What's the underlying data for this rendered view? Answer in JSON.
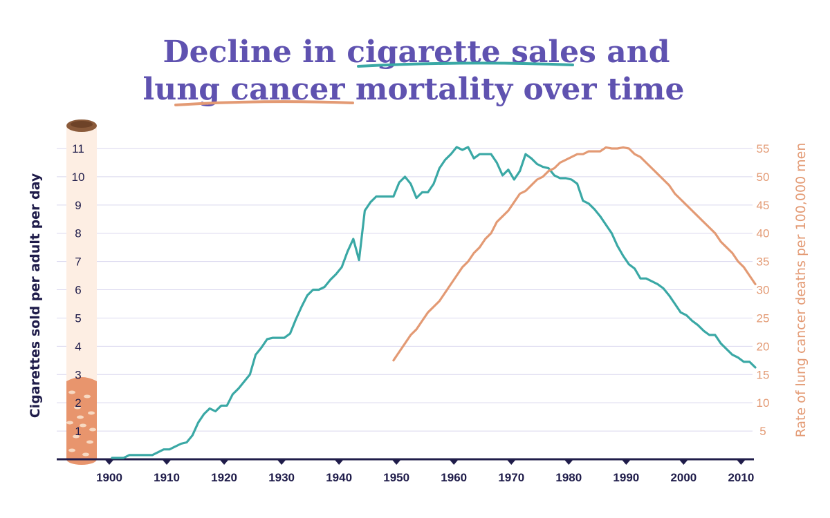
{
  "title_parts": {
    "line1_a": "Decline in ",
    "line1_b": "cigarette sales",
    "line1_c": " and",
    "line2_a": "lung cancer",
    "line2_b": " mortality over time"
  },
  "colors": {
    "title": "#5f52b0",
    "sales": "#3aa8a5",
    "mortality": "#e39a74",
    "axis_text": "#1f1c4a",
    "grid": "#d9d6ee",
    "cig_filter": "#e8956d",
    "cig_paper": "#fdeee3"
  },
  "chart_data": {
    "type": "line",
    "title": "Decline in cigarette sales and lung cancer mortality over time",
    "xlabel": "",
    "ylabel": "Cigarettes sold per adult per day",
    "y2label": "Rate of lung cancer deaths per 100,000 men",
    "xlim": [
      1896,
      2013
    ],
    "ylim": [
      0,
      11
    ],
    "y2lim": [
      0,
      55
    ],
    "x_ticks": [
      "1900",
      "1910",
      "1920",
      "1930",
      "1940",
      "1950",
      "1960",
      "1970",
      "1980",
      "1990",
      "2000",
      "2010"
    ],
    "y_ticks": [
      "1",
      "2",
      "3",
      "4",
      "5",
      "6",
      "7",
      "8",
      "9",
      "10",
      "11"
    ],
    "y2_ticks": [
      "5",
      "10",
      "15",
      "20",
      "25",
      "30",
      "35",
      "40",
      "45",
      "50",
      "55"
    ],
    "grid": true,
    "series": [
      {
        "name": "cigarette sales",
        "axis": "left",
        "points": [
          [
            1900,
            0.05
          ],
          [
            1902,
            0.05
          ],
          [
            1903,
            0.15
          ],
          [
            1905,
            0.15
          ],
          [
            1907,
            0.15
          ],
          [
            1908,
            0.25
          ],
          [
            1909,
            0.35
          ],
          [
            1910,
            0.35
          ],
          [
            1911,
            0.45
          ],
          [
            1912,
            0.55
          ],
          [
            1913,
            0.6
          ],
          [
            1914,
            0.85
          ],
          [
            1915,
            1.3
          ],
          [
            1916,
            1.6
          ],
          [
            1917,
            1.8
          ],
          [
            1918,
            1.7
          ],
          [
            1919,
            1.9
          ],
          [
            1920,
            1.9
          ],
          [
            1921,
            2.3
          ],
          [
            1922,
            2.5
          ],
          [
            1923,
            2.75
          ],
          [
            1924,
            3.0
          ],
          [
            1925,
            3.7
          ],
          [
            1926,
            3.95
          ],
          [
            1927,
            4.25
          ],
          [
            1928,
            4.3
          ],
          [
            1929,
            4.3
          ],
          [
            1930,
            4.3
          ],
          [
            1931,
            4.45
          ],
          [
            1932,
            4.95
          ],
          [
            1933,
            5.4
          ],
          [
            1934,
            5.8
          ],
          [
            1935,
            6.0
          ],
          [
            1936,
            6.0
          ],
          [
            1937,
            6.1
          ],
          [
            1938,
            6.35
          ],
          [
            1939,
            6.55
          ],
          [
            1940,
            6.8
          ],
          [
            1941,
            7.35
          ],
          [
            1942,
            7.8
          ],
          [
            1943,
            7.05
          ],
          [
            1944,
            8.8
          ],
          [
            1945,
            9.1
          ],
          [
            1946,
            9.3
          ],
          [
            1947,
            9.3
          ],
          [
            1948,
            9.3
          ],
          [
            1949,
            9.3
          ],
          [
            1950,
            9.8
          ],
          [
            1951,
            10.0
          ],
          [
            1952,
            9.75
          ],
          [
            1953,
            9.25
          ],
          [
            1954,
            9.45
          ],
          [
            1955,
            9.45
          ],
          [
            1956,
            9.75
          ],
          [
            1957,
            10.3
          ],
          [
            1958,
            10.6
          ],
          [
            1959,
            10.8
          ],
          [
            1960,
            11.05
          ],
          [
            1961,
            10.95
          ],
          [
            1962,
            11.05
          ],
          [
            1963,
            10.65
          ],
          [
            1964,
            10.8
          ],
          [
            1965,
            10.8
          ],
          [
            1966,
            10.8
          ],
          [
            1967,
            10.5
          ],
          [
            1968,
            10.05
          ],
          [
            1969,
            10.25
          ],
          [
            1970,
            9.9
          ],
          [
            1971,
            10.2
          ],
          [
            1972,
            10.8
          ],
          [
            1973,
            10.65
          ],
          [
            1974,
            10.45
          ],
          [
            1975,
            10.35
          ],
          [
            1976,
            10.3
          ],
          [
            1977,
            10.05
          ],
          [
            1978,
            9.95
          ],
          [
            1979,
            9.95
          ],
          [
            1980,
            9.9
          ],
          [
            1981,
            9.75
          ],
          [
            1982,
            9.15
          ],
          [
            1983,
            9.05
          ],
          [
            1984,
            8.85
          ],
          [
            1985,
            8.6
          ],
          [
            1986,
            8.3
          ],
          [
            1987,
            8.0
          ],
          [
            1988,
            7.55
          ],
          [
            1989,
            7.2
          ],
          [
            1990,
            6.9
          ],
          [
            1991,
            6.75
          ],
          [
            1992,
            6.4
          ],
          [
            1993,
            6.4
          ],
          [
            1994,
            6.3
          ],
          [
            1995,
            6.2
          ],
          [
            1996,
            6.05
          ],
          [
            1997,
            5.8
          ],
          [
            1998,
            5.5
          ],
          [
            1999,
            5.2
          ],
          [
            2000,
            5.1
          ],
          [
            2001,
            4.9
          ],
          [
            2002,
            4.75
          ],
          [
            2003,
            4.55
          ],
          [
            2004,
            4.4
          ],
          [
            2005,
            4.4
          ],
          [
            2006,
            4.1
          ],
          [
            2007,
            3.9
          ],
          [
            2008,
            3.7
          ],
          [
            2009,
            3.6
          ],
          [
            2010,
            3.45
          ],
          [
            2011,
            3.45
          ],
          [
            2012,
            3.25
          ]
        ]
      },
      {
        "name": "lung cancer mortality",
        "axis": "right",
        "points": [
          [
            1949,
            17.5
          ],
          [
            1950,
            19.0
          ],
          [
            1951,
            20.5
          ],
          [
            1952,
            22.0
          ],
          [
            1953,
            23.0
          ],
          [
            1954,
            24.5
          ],
          [
            1955,
            26.0
          ],
          [
            1956,
            27.0
          ],
          [
            1957,
            28.0
          ],
          [
            1958,
            29.5
          ],
          [
            1959,
            31.0
          ],
          [
            1960,
            32.5
          ],
          [
            1961,
            34.0
          ],
          [
            1962,
            35.0
          ],
          [
            1963,
            36.5
          ],
          [
            1964,
            37.5
          ],
          [
            1965,
            39.0
          ],
          [
            1966,
            40.0
          ],
          [
            1967,
            42.0
          ],
          [
            1968,
            43.0
          ],
          [
            1969,
            44.0
          ],
          [
            1970,
            45.5
          ],
          [
            1971,
            47.0
          ],
          [
            1972,
            47.5
          ],
          [
            1973,
            48.5
          ],
          [
            1974,
            49.5
          ],
          [
            1975,
            50.0
          ],
          [
            1976,
            51.0
          ],
          [
            1977,
            51.5
          ],
          [
            1978,
            52.5
          ],
          [
            1979,
            53.0
          ],
          [
            1980,
            53.5
          ],
          [
            1981,
            54.0
          ],
          [
            1982,
            54.0
          ],
          [
            1983,
            54.5
          ],
          [
            1984,
            54.5
          ],
          [
            1985,
            54.5
          ],
          [
            1986,
            55.2
          ],
          [
            1987,
            55.0
          ],
          [
            1988,
            55.0
          ],
          [
            1989,
            55.2
          ],
          [
            1990,
            55.0
          ],
          [
            1991,
            54.0
          ],
          [
            1992,
            53.5
          ],
          [
            1993,
            52.5
          ],
          [
            1994,
            51.5
          ],
          [
            1995,
            50.5
          ],
          [
            1996,
            49.5
          ],
          [
            1997,
            48.5
          ],
          [
            1998,
            47.0
          ],
          [
            1999,
            46.0
          ],
          [
            2000,
            45.0
          ],
          [
            2001,
            44.0
          ],
          [
            2002,
            43.0
          ],
          [
            2003,
            42.0
          ],
          [
            2004,
            41.0
          ],
          [
            2005,
            40.0
          ],
          [
            2006,
            38.5
          ],
          [
            2007,
            37.5
          ],
          [
            2008,
            36.5
          ],
          [
            2009,
            35.0
          ],
          [
            2010,
            34.0
          ],
          [
            2011,
            32.5
          ],
          [
            2012,
            31.0
          ]
        ]
      }
    ]
  }
}
